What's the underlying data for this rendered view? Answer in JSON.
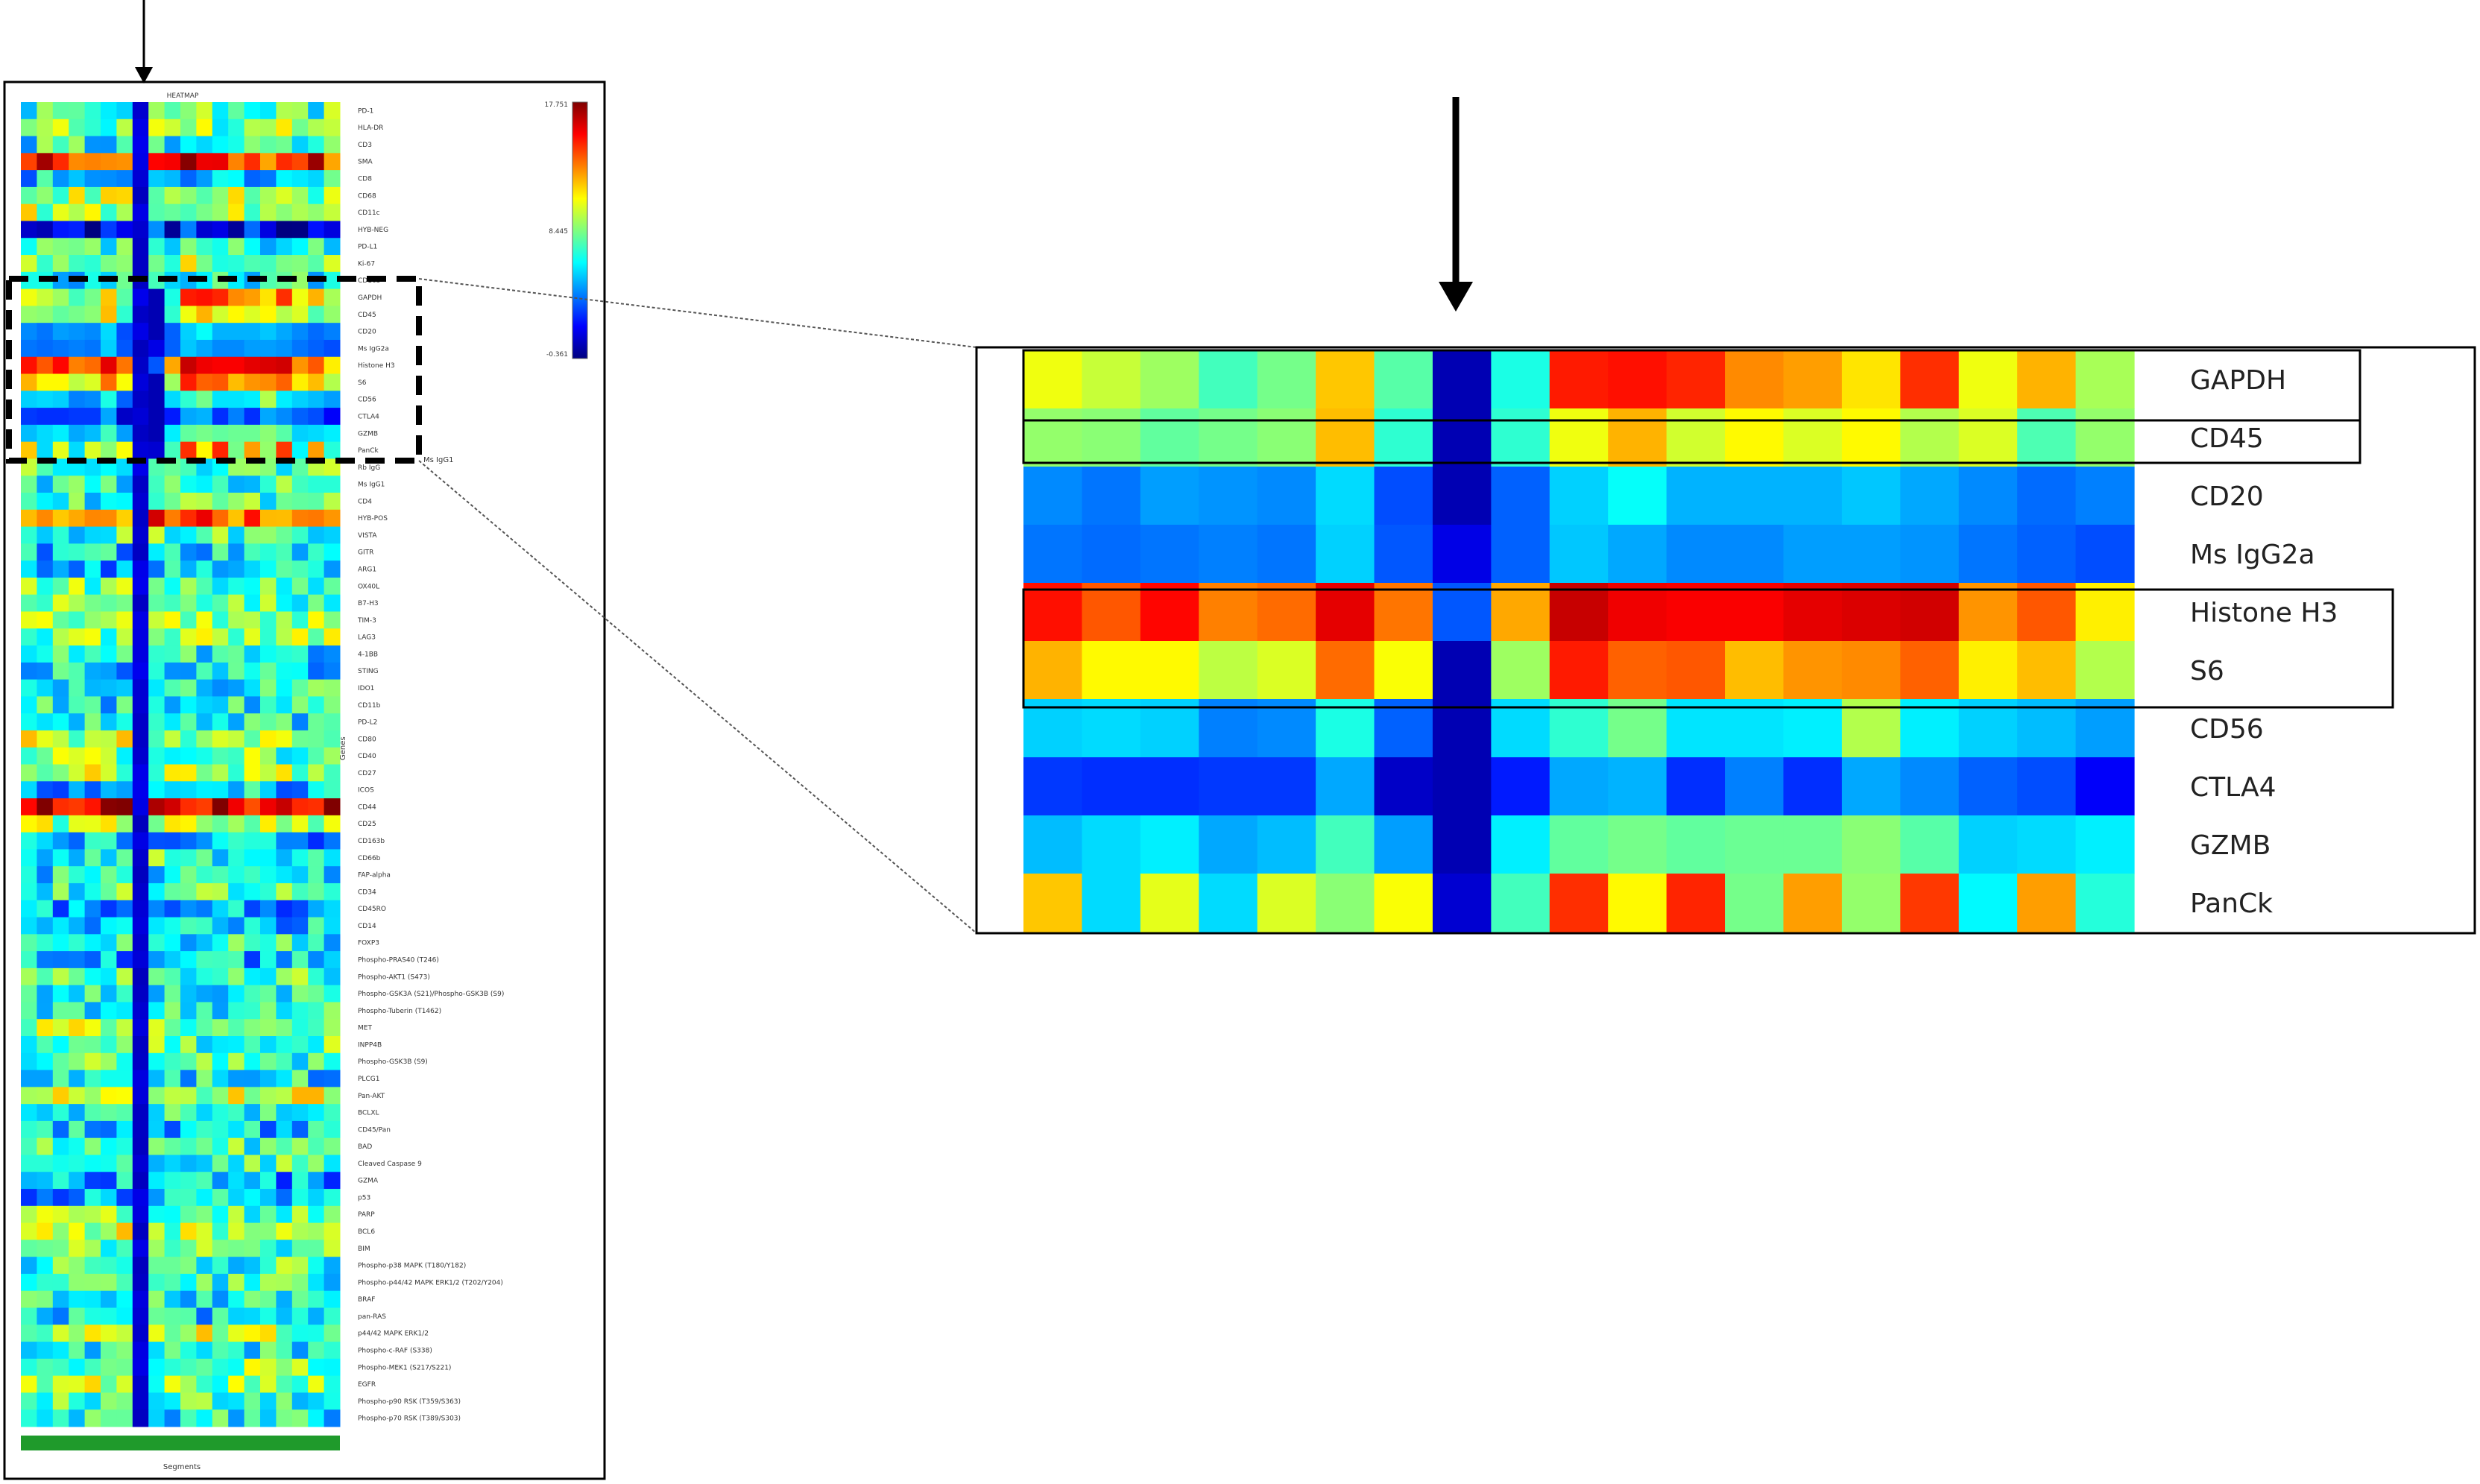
{
  "chart_data": [
    {
      "type": "heatmap",
      "title": "HEATMAP",
      "xlabel": "Segments",
      "ylabel": "Genes",
      "colorbar": {
        "max_label": "17.751",
        "mid_label": "8.445",
        "min_label": "-0.361",
        "max": 17.751,
        "mid": 8.445,
        "min": -0.361
      },
      "colormap": [
        "#00007f",
        "#0000ff",
        "#007fff",
        "#00ffff",
        "#7fff7f",
        "#ffff00",
        "#ff7f00",
        "#ff0000",
        "#7f0000"
      ],
      "n_columns": 20,
      "highlighted_column": 7,
      "bracket_label": "Ms IgG1",
      "rows": [
        "PD-1",
        "HLA-DR",
        "CD3",
        "SMA",
        "CD8",
        "CD68",
        "CD11c",
        "HYB-NEG",
        "PD-L1",
        "Ki-67",
        "CD163",
        "GAPDH",
        "CD45",
        "CD20",
        "Ms IgG2a",
        "Histone H3",
        "S6",
        "CD56",
        "CTLA4",
        "GZMB",
        "PanCk",
        "Rb IgG",
        "Ms IgG1",
        "CD4",
        "HYB-POS",
        "VISTA",
        "GITR",
        "ARG1",
        "OX40L",
        "B7-H3",
        "TIM-3",
        "LAG3",
        "4-1BB",
        "STING",
        "IDO1",
        "CD11b",
        "PD-L2",
        "CD80",
        "CD40",
        "CD27",
        "ICOS",
        "CD44",
        "CD25",
        "CD163b",
        "CD66b",
        "FAP-alpha",
        "CD34",
        "CD45RO",
        "CD14",
        "FOXP3",
        "Phospho-PRAS40 (T246)",
        "Phospho-AKT1 (S473)",
        "Phospho-GSK3A (S21)/Phospho-GSK3B (S9)",
        "Phospho-Tuberin (T1462)",
        "MET",
        "INPP4B",
        "Phospho-GSK3B (S9)",
        "PLCG1",
        "Pan-AKT",
        "BCLXL",
        "CD45/Pan",
        "BAD",
        "Cleaved Caspase 9",
        "GZMA",
        "p53",
        "PARP",
        "BCL6",
        "BIM",
        "Phospho-p38 MAPK (T180/Y182)",
        "Phospho-p44/42 MAPK ERK1/2 (T202/Y204)",
        "BRAF",
        "pan-RAS",
        "p44/42 MAPK ERK1/2",
        "Phospho-c-RAF (S338)",
        "Phospho-MEK1 (S217/S221)",
        "EGFR",
        "Phospho-p90 RSK (T359/S363)",
        "Phospho-p70 RSK (T389/S303)"
      ]
    },
    {
      "type": "heatmap",
      "title": "",
      "n_columns": 19,
      "highlighted_column": 8,
      "boxed_groups": [
        [
          "GAPDH"
        ],
        [
          "CD45"
        ],
        [
          "Histone H3",
          "S6"
        ]
      ],
      "rows": [
        "GAPDH",
        "CD45",
        "CD20",
        "Ms IgG2a",
        "Histone H3",
        "S6",
        "CD56",
        "CTLA4",
        "GZMB",
        "PanCk"
      ],
      "values": [
        [
          0.61,
          0.57,
          0.53,
          0.44,
          0.49,
          0.68,
          0.46,
          0.05,
          0.4,
          0.85,
          0.86,
          0.84,
          0.74,
          0.72,
          0.65,
          0.83,
          0.61,
          0.7,
          0.54
        ],
        [
          0.52,
          0.51,
          0.47,
          0.49,
          0.51,
          0.69,
          0.42,
          0.05,
          0.42,
          0.61,
          0.7,
          0.58,
          0.63,
          0.59,
          0.63,
          0.55,
          0.59,
          0.45,
          0.52
        ],
        [
          0.26,
          0.24,
          0.28,
          0.27,
          0.26,
          0.34,
          0.2,
          0.05,
          0.22,
          0.33,
          0.38,
          0.3,
          0.3,
          0.3,
          0.32,
          0.29,
          0.26,
          0.23,
          0.25
        ],
        [
          0.24,
          0.23,
          0.24,
          0.25,
          0.24,
          0.33,
          0.21,
          0.1,
          0.22,
          0.32,
          0.29,
          0.26,
          0.26,
          0.28,
          0.28,
          0.27,
          0.24,
          0.22,
          0.2
        ],
        [
          0.86,
          0.79,
          0.87,
          0.75,
          0.77,
          0.9,
          0.76,
          0.21,
          0.71,
          0.93,
          0.89,
          0.88,
          0.88,
          0.9,
          0.91,
          0.92,
          0.73,
          0.79,
          0.64
        ],
        [
          0.7,
          0.63,
          0.63,
          0.56,
          0.59,
          0.77,
          0.62,
          0.05,
          0.53,
          0.85,
          0.78,
          0.79,
          0.69,
          0.73,
          0.74,
          0.78,
          0.64,
          0.69,
          0.55
        ],
        [
          0.33,
          0.34,
          0.33,
          0.25,
          0.26,
          0.4,
          0.22,
          0.05,
          0.34,
          0.42,
          0.49,
          0.35,
          0.35,
          0.36,
          0.55,
          0.36,
          0.33,
          0.31,
          0.28
        ],
        [
          0.18,
          0.17,
          0.17,
          0.18,
          0.18,
          0.29,
          0.07,
          0.05,
          0.15,
          0.29,
          0.3,
          0.17,
          0.25,
          0.17,
          0.29,
          0.26,
          0.22,
          0.2,
          0.12
        ],
        [
          0.31,
          0.34,
          0.36,
          0.29,
          0.31,
          0.44,
          0.28,
          0.05,
          0.36,
          0.47,
          0.49,
          0.47,
          0.48,
          0.48,
          0.51,
          0.46,
          0.33,
          0.34,
          0.36
        ],
        [
          0.68,
          0.34,
          0.6,
          0.34,
          0.59,
          0.51,
          0.62,
          0.08,
          0.44,
          0.83,
          0.63,
          0.84,
          0.49,
          0.72,
          0.52,
          0.82,
          0.37,
          0.72,
          0.41
        ]
      ]
    }
  ]
}
